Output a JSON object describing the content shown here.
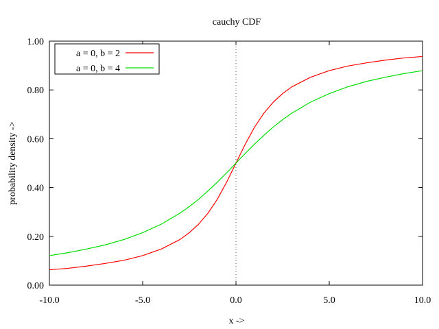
{
  "chart_data": {
    "type": "line",
    "title": "cauchy CDF",
    "xlabel": "x ->",
    "ylabel": "probability density ->",
    "xlim": [
      -10,
      10
    ],
    "ylim": [
      0,
      1
    ],
    "x_ticks": [
      -10,
      -5,
      0,
      5,
      10
    ],
    "x_tick_labels": [
      "-10.0",
      "-5.0",
      "0.0",
      "5.0",
      "10.0"
    ],
    "y_ticks": [
      0,
      0.2,
      0.4,
      0.6,
      0.8,
      1
    ],
    "y_tick_labels": [
      "0.00",
      "0.20",
      "0.40",
      "0.60",
      "0.80",
      "1.00"
    ],
    "grid": false,
    "zero_line": true,
    "legend_position": "top-left",
    "x": [
      -10,
      -9,
      -8,
      -7,
      -6,
      -5,
      -4,
      -3,
      -2.5,
      -2,
      -1.5,
      -1,
      -0.5,
      0,
      0.5,
      1,
      1.5,
      2,
      2.5,
      3,
      4,
      5,
      6,
      7,
      8,
      9,
      10
    ],
    "series": [
      {
        "name": "a = 0, b = 2",
        "color": "#ff0000",
        "values": [
          0.063,
          0.069,
          0.078,
          0.089,
          0.102,
          0.121,
          0.148,
          0.187,
          0.215,
          0.25,
          0.295,
          0.352,
          0.422,
          0.5,
          0.578,
          0.648,
          0.705,
          0.75,
          0.785,
          0.813,
          0.852,
          0.879,
          0.898,
          0.911,
          0.922,
          0.931,
          0.937
        ]
      },
      {
        "name": "a = 0, b = 4",
        "color": "#00dd00",
        "values": [
          0.121,
          0.133,
          0.148,
          0.165,
          0.187,
          0.215,
          0.25,
          0.295,
          0.322,
          0.352,
          0.386,
          0.422,
          0.46,
          0.5,
          0.54,
          0.578,
          0.614,
          0.648,
          0.678,
          0.705,
          0.75,
          0.785,
          0.813,
          0.835,
          0.852,
          0.867,
          0.879
        ]
      }
    ]
  }
}
